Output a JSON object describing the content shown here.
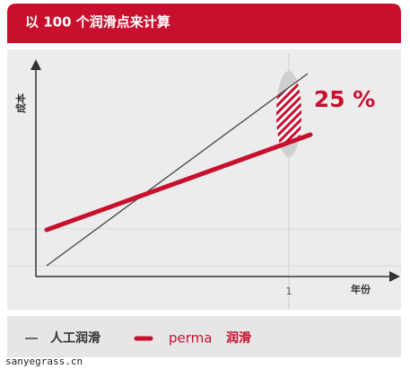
{
  "header": {
    "title": "以 100 个润滑点来计算"
  },
  "chart": {
    "y_label": "成本",
    "x_label": "年份",
    "x_tick": "1",
    "annotation": "25 %"
  },
  "legend": {
    "items": [
      {
        "label": "人工润滑"
      },
      {
        "label_prefix": "perma",
        "label_suffix": "润滑"
      }
    ]
  },
  "watermark": "sanyegrass.cn"
}
